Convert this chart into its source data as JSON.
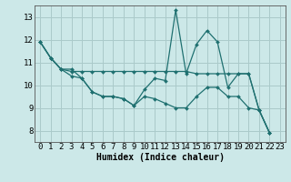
{
  "xlabel": "Humidex (Indice chaleur)",
  "bg_color": "#cce8e8",
  "line_color": "#1f7070",
  "grid_color": "#aacaca",
  "xlim": [
    -0.5,
    23.5
  ],
  "ylim": [
    7.5,
    13.5
  ],
  "yticks": [
    8,
    9,
    10,
    11,
    12,
    13
  ],
  "xticks": [
    0,
    1,
    2,
    3,
    4,
    5,
    6,
    7,
    8,
    9,
    10,
    11,
    12,
    13,
    14,
    15,
    16,
    17,
    18,
    19,
    20,
    21,
    22,
    23
  ],
  "series": [
    [
      11.9,
      11.2,
      10.7,
      10.7,
      10.3,
      9.7,
      9.5,
      9.5,
      9.4,
      9.1,
      9.8,
      10.3,
      10.2,
      13.3,
      10.5,
      11.8,
      12.4,
      11.9,
      9.9,
      10.5,
      10.5,
      8.9,
      7.9
    ],
    [
      11.9,
      11.2,
      10.7,
      10.6,
      10.6,
      10.6,
      10.6,
      10.6,
      10.6,
      10.6,
      10.6,
      10.6,
      10.6,
      10.6,
      10.6,
      10.5,
      10.5,
      10.5,
      10.5,
      10.5,
      10.5,
      8.9,
      7.9
    ],
    [
      11.9,
      11.2,
      10.7,
      10.4,
      10.3,
      9.7,
      9.5,
      9.5,
      9.4,
      9.1,
      9.5,
      9.4,
      9.2,
      9.0,
      9.0,
      9.5,
      9.9,
      9.9,
      9.5,
      9.5,
      9.0,
      8.9,
      7.9
    ]
  ],
  "marker": "D",
  "markersize": 2.0,
  "linewidth": 0.9,
  "xlabel_fontsize": 7,
  "tick_fontsize": 6.5
}
